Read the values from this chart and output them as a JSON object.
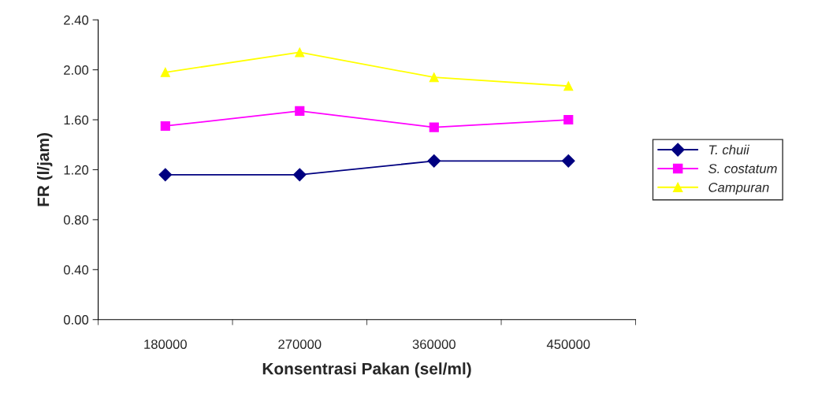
{
  "chart_data": {
    "type": "line",
    "xlabel": "Konsentrasi Pakan (sel/ml)",
    "ylabel": "FR (l/jam)",
    "categories": [
      "180000",
      "270000",
      "360000",
      "450000"
    ],
    "ylim": [
      0,
      2.4
    ],
    "yticks": [
      {
        "value": 0,
        "label": "0.00"
      },
      {
        "value": 0.4,
        "label": "0.40"
      },
      {
        "value": 0.8,
        "label": "0.80"
      },
      {
        "value": 1.2,
        "label": "1.20"
      },
      {
        "value": 1.6,
        "label": "1.60"
      },
      {
        "value": 2.0,
        "label": "2.00"
      },
      {
        "value": 2.4,
        "label": "2.40"
      }
    ],
    "grid": false,
    "legend": "right",
    "series": [
      {
        "name": "T. chuii",
        "color": "#000080",
        "marker": "diamond",
        "values": [
          1.16,
          1.16,
          1.27,
          1.27
        ]
      },
      {
        "name": "S. costatum",
        "color": "#ff00ff",
        "marker": "square",
        "values": [
          1.55,
          1.67,
          1.54,
          1.6
        ]
      },
      {
        "name": "Campuran",
        "color": "#ffff00",
        "marker": "triangle",
        "values": [
          1.98,
          2.14,
          1.94,
          1.87
        ]
      }
    ]
  }
}
